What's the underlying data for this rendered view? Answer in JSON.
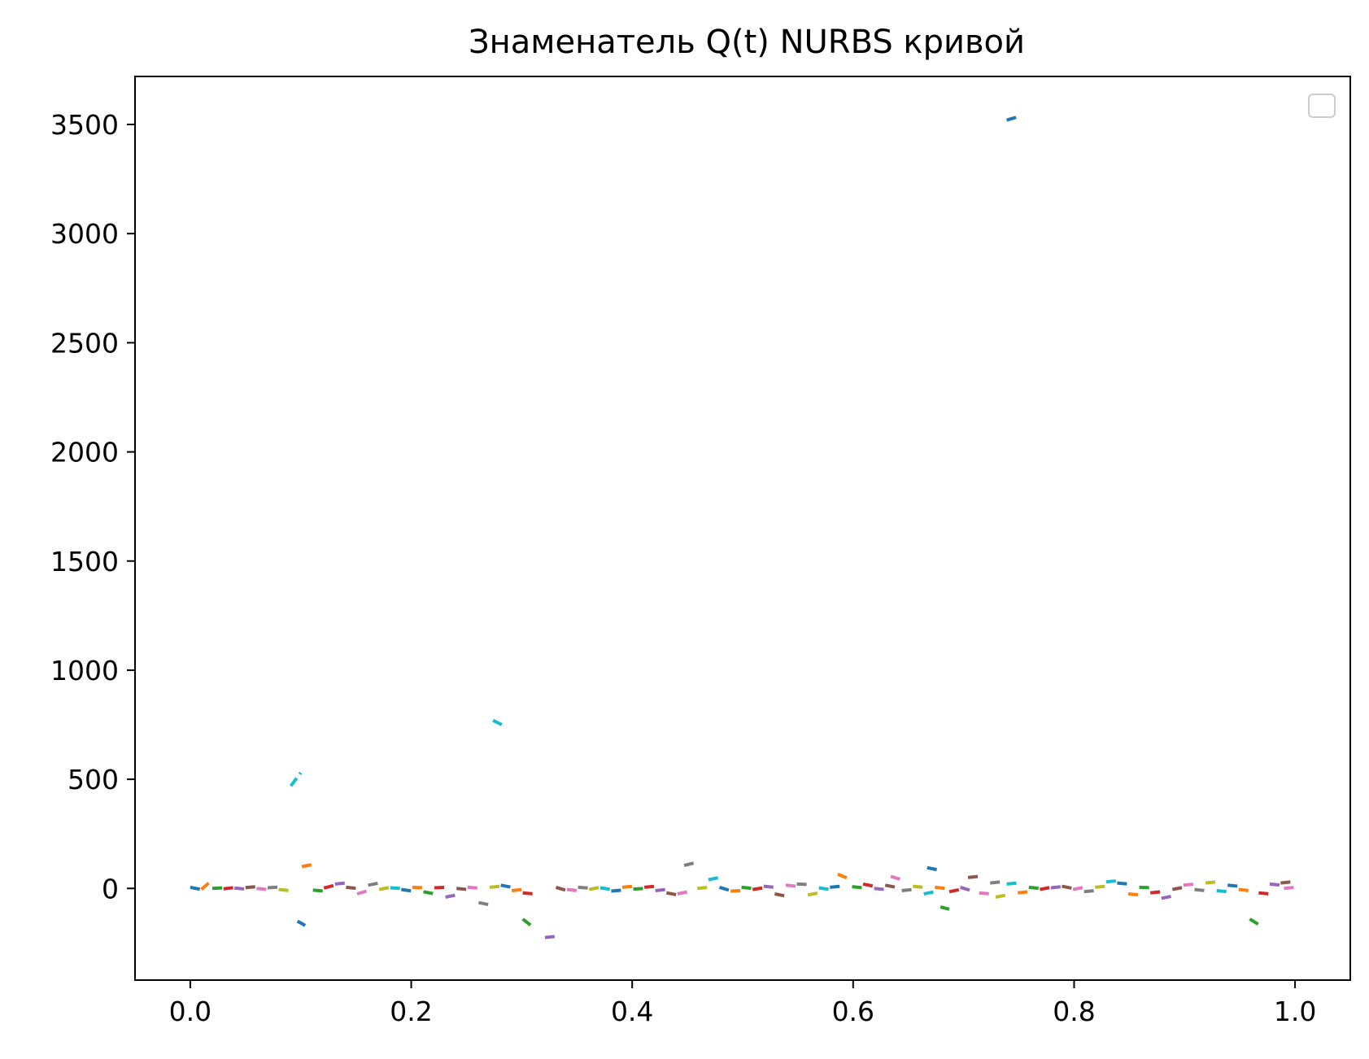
{
  "chart_data": {
    "type": "line",
    "title": "Знаменатель Q(t) NURBS кривой",
    "xlabel": "",
    "ylabel": "",
    "xlim": [
      -0.05,
      1.05
    ],
    "ylim": [
      -420,
      3720
    ],
    "x_ticks": [
      0.0,
      0.2,
      0.4,
      0.6,
      0.8,
      1.0
    ],
    "x_tick_labels": [
      "0.0",
      "0.2",
      "0.4",
      "0.6",
      "0.8",
      "1.0"
    ],
    "y_ticks": [
      0,
      500,
      1000,
      1500,
      2000,
      2500,
      3000,
      3500
    ],
    "y_tick_labels": [
      "0",
      "500",
      "1000",
      "1500",
      "2000",
      "2500",
      "3000",
      "3500"
    ],
    "grid": false,
    "legend": {
      "placement": "top-right",
      "entries": []
    },
    "line_style": "dashed",
    "palette": [
      "#1f77b4",
      "#ff7f0e",
      "#2ca02c",
      "#d62728",
      "#9467bd",
      "#8c564b",
      "#e377c2",
      "#7f7f7f",
      "#bcbd22",
      "#17becf"
    ],
    "segments": [
      {
        "x": [
          0.0,
          0.01
        ],
        "y": [
          5,
          -5
        ]
      },
      {
        "x": [
          0.01,
          0.02
        ],
        "y": [
          -5,
          40
        ]
      },
      {
        "x": [
          0.02,
          0.03
        ],
        "y": [
          0,
          3
        ]
      },
      {
        "x": [
          0.03,
          0.04
        ],
        "y": [
          -2,
          4
        ]
      },
      {
        "x": [
          0.04,
          0.05
        ],
        "y": [
          2,
          -3
        ]
      },
      {
        "x": [
          0.05,
          0.06
        ],
        "y": [
          4,
          8
        ]
      },
      {
        "x": [
          0.06,
          0.07
        ],
        "y": [
          0,
          -5
        ]
      },
      {
        "x": [
          0.07,
          0.08
        ],
        "y": [
          3,
          6
        ]
      },
      {
        "x": [
          0.08,
          0.091
        ],
        "y": [
          -5,
          -10
        ]
      },
      {
        "x": [
          0.091,
          0.1
        ],
        "y": [
          470,
          530
        ]
      },
      {
        "x": [
          0.097,
          0.104
        ],
        "y": [
          -150,
          -170
        ]
      },
      {
        "x": [
          0.101,
          0.111
        ],
        "y": [
          100,
          110
        ]
      },
      {
        "x": [
          0.111,
          0.121
        ],
        "y": [
          -8,
          -12
        ]
      },
      {
        "x": [
          0.121,
          0.131
        ],
        "y": [
          2,
          15
        ]
      },
      {
        "x": [
          0.131,
          0.141
        ],
        "y": [
          20,
          25
        ]
      },
      {
        "x": [
          0.141,
          0.151
        ],
        "y": [
          5,
          0
        ]
      },
      {
        "x": [
          0.151,
          0.161
        ],
        "y": [
          -25,
          -10
        ]
      },
      {
        "x": [
          0.161,
          0.171
        ],
        "y": [
          15,
          25
        ]
      },
      {
        "x": [
          0.171,
          0.181
        ],
        "y": [
          -5,
          5
        ]
      },
      {
        "x": [
          0.181,
          0.191
        ],
        "y": [
          3,
          0
        ]
      },
      {
        "x": [
          0.191,
          0.201
        ],
        "y": [
          -5,
          -12
        ]
      },
      {
        "x": [
          0.201,
          0.211
        ],
        "y": [
          5,
          3
        ]
      },
      {
        "x": [
          0.211,
          0.221
        ],
        "y": [
          -15,
          -25
        ]
      },
      {
        "x": [
          0.221,
          0.231
        ],
        "y": [
          3,
          5
        ]
      },
      {
        "x": [
          0.231,
          0.241
        ],
        "y": [
          -40,
          -30
        ]
      },
      {
        "x": [
          0.241,
          0.251
        ],
        "y": [
          0,
          -5
        ]
      },
      {
        "x": [
          0.251,
          0.261
        ],
        "y": [
          5,
          2
        ]
      },
      {
        "x": [
          0.261,
          0.271
        ],
        "y": [
          -65,
          -75
        ]
      },
      {
        "x": [
          0.271,
          0.281
        ],
        "y": [
          5,
          10
        ]
      },
      {
        "x": [
          0.274,
          0.282
        ],
        "y": [
          770,
          750
        ]
      },
      {
        "x": [
          0.281,
          0.291
        ],
        "y": [
          15,
          5
        ]
      },
      {
        "x": [
          0.291,
          0.301
        ],
        "y": [
          -10,
          -5
        ]
      },
      {
        "x": [
          0.301,
          0.311
        ],
        "y": [
          -140,
          -180
        ]
      },
      {
        "x": [
          0.301,
          0.311
        ],
        "y": [
          -20,
          -25
        ]
      },
      {
        "x": [
          0.321,
          0.33
        ],
        "y": [
          -225,
          -220
        ]
      },
      {
        "x": [
          0.331,
          0.341
        ],
        "y": [
          5,
          -10
        ]
      },
      {
        "x": [
          0.341,
          0.351
        ],
        "y": [
          -5,
          -10
        ]
      },
      {
        "x": [
          0.351,
          0.361
        ],
        "y": [
          5,
          2
        ]
      },
      {
        "x": [
          0.361,
          0.371
        ],
        "y": [
          -5,
          5
        ]
      },
      {
        "x": [
          0.371,
          0.381
        ],
        "y": [
          3,
          -5
        ]
      },
      {
        "x": [
          0.381,
          0.391
        ],
        "y": [
          -12,
          -8
        ]
      },
      {
        "x": [
          0.391,
          0.401
        ],
        "y": [
          5,
          10
        ]
      },
      {
        "x": [
          0.401,
          0.411
        ],
        "y": [
          -3,
          0
        ]
      },
      {
        "x": [
          0.411,
          0.421
        ],
        "y": [
          5,
          10
        ]
      },
      {
        "x": [
          0.421,
          0.431
        ],
        "y": [
          -10,
          -5
        ]
      },
      {
        "x": [
          0.431,
          0.441
        ],
        "y": [
          -20,
          -30
        ]
      },
      {
        "x": [
          0.441,
          0.451
        ],
        "y": [
          -25,
          -15
        ]
      },
      {
        "x": [
          0.447,
          0.459
        ],
        "y": [
          105,
          120
        ]
      },
      {
        "x": [
          0.459,
          0.469
        ],
        "y": [
          0,
          5
        ]
      },
      {
        "x": [
          0.469,
          0.479
        ],
        "y": [
          40,
          50
        ]
      },
      {
        "x": [
          0.479,
          0.489
        ],
        "y": [
          5,
          -10
        ]
      },
      {
        "x": [
          0.489,
          0.499
        ],
        "y": [
          -12,
          -10
        ]
      },
      {
        "x": [
          0.499,
          0.509
        ],
        "y": [
          5,
          0
        ]
      },
      {
        "x": [
          0.509,
          0.519
        ],
        "y": [
          -5,
          3
        ]
      },
      {
        "x": [
          0.519,
          0.529
        ],
        "y": [
          10,
          5
        ]
      },
      {
        "x": [
          0.529,
          0.539
        ],
        "y": [
          -25,
          -35
        ]
      },
      {
        "x": [
          0.539,
          0.549
        ],
        "y": [
          15,
          10
        ]
      },
      {
        "x": [
          0.549,
          0.559
        ],
        "y": [
          20,
          18
        ]
      },
      {
        "x": [
          0.559,
          0.569
        ],
        "y": [
          -30,
          -20
        ]
      },
      {
        "x": [
          0.569,
          0.579
        ],
        "y": [
          3,
          -5
        ]
      },
      {
        "x": [
          0.579,
          0.589
        ],
        "y": [
          5,
          10
        ]
      },
      {
        "x": [
          0.586,
          0.596
        ],
        "y": [
          65,
          45
        ]
      },
      {
        "x": [
          0.599,
          0.609
        ],
        "y": [
          8,
          3
        ]
      },
      {
        "x": [
          0.609,
          0.619
        ],
        "y": [
          20,
          10
        ]
      },
      {
        "x": [
          0.619,
          0.629
        ],
        "y": [
          0,
          -5
        ]
      },
      {
        "x": [
          0.629,
          0.639
        ],
        "y": [
          15,
          5
        ]
      },
      {
        "x": [
          0.634,
          0.644
        ],
        "y": [
          55,
          40
        ]
      },
      {
        "x": [
          0.644,
          0.654
        ],
        "y": [
          -10,
          -5
        ]
      },
      {
        "x": [
          0.654,
          0.664
        ],
        "y": [
          10,
          5
        ]
      },
      {
        "x": [
          0.664,
          0.674
        ],
        "y": [
          -25,
          -15
        ]
      },
      {
        "x": [
          0.667,
          0.677
        ],
        "y": [
          95,
          85
        ]
      },
      {
        "x": [
          0.674,
          0.684
        ],
        "y": [
          5,
          0
        ]
      },
      {
        "x": [
          0.679,
          0.687
        ],
        "y": [
          -85,
          -95
        ]
      },
      {
        "x": [
          0.687,
          0.697
        ],
        "y": [
          -15,
          -5
        ]
      },
      {
        "x": [
          0.697,
          0.707
        ],
        "y": [
          5,
          -10
        ]
      },
      {
        "x": [
          0.704,
          0.714
        ],
        "y": [
          50,
          55
        ]
      },
      {
        "x": [
          0.714,
          0.724
        ],
        "y": [
          -20,
          -25
        ]
      },
      {
        "x": [
          0.724,
          0.734
        ],
        "y": [
          25,
          30
        ]
      },
      {
        "x": [
          0.729,
          0.739
        ],
        "y": [
          -40,
          -30
        ]
      },
      {
        "x": [
          0.739,
          0.749
        ],
        "y": [
          20,
          25
        ]
      },
      {
        "x": [
          0.739,
          0.749
        ],
        "y": [
          3520,
          3535
        ]
      },
      {
        "x": [
          0.749,
          0.759
        ],
        "y": [
          -20,
          -15
        ]
      },
      {
        "x": [
          0.759,
          0.769
        ],
        "y": [
          5,
          0
        ]
      },
      {
        "x": [
          0.769,
          0.779
        ],
        "y": [
          -5,
          5
        ]
      },
      {
        "x": [
          0.779,
          0.789
        ],
        "y": [
          3,
          8
        ]
      },
      {
        "x": [
          0.789,
          0.799
        ],
        "y": [
          10,
          0
        ]
      },
      {
        "x": [
          0.799,
          0.809
        ],
        "y": [
          -5,
          5
        ]
      },
      {
        "x": [
          0.809,
          0.819
        ],
        "y": [
          -15,
          -10
        ]
      },
      {
        "x": [
          0.819,
          0.829
        ],
        "y": [
          5,
          10
        ]
      },
      {
        "x": [
          0.829,
          0.839
        ],
        "y": [
          30,
          35
        ]
      },
      {
        "x": [
          0.839,
          0.849
        ],
        "y": [
          25,
          20
        ]
      },
      {
        "x": [
          0.849,
          0.859
        ],
        "y": [
          -25,
          -30
        ]
      },
      {
        "x": [
          0.859,
          0.869
        ],
        "y": [
          5,
          3
        ]
      },
      {
        "x": [
          0.869,
          0.879
        ],
        "y": [
          -20,
          -15
        ]
      },
      {
        "x": [
          0.879,
          0.889
        ],
        "y": [
          -45,
          -35
        ]
      },
      {
        "x": [
          0.889,
          0.899
        ],
        "y": [
          -5,
          5
        ]
      },
      {
        "x": [
          0.899,
          0.909
        ],
        "y": [
          15,
          20
        ]
      },
      {
        "x": [
          0.909,
          0.919
        ],
        "y": [
          -5,
          -10
        ]
      },
      {
        "x": [
          0.919,
          0.929
        ],
        "y": [
          25,
          30
        ]
      },
      {
        "x": [
          0.929,
          0.939
        ],
        "y": [
          -10,
          -15
        ]
      },
      {
        "x": [
          0.939,
          0.949
        ],
        "y": [
          15,
          10
        ]
      },
      {
        "x": [
          0.949,
          0.959
        ],
        "y": [
          -5,
          -10
        ]
      },
      {
        "x": [
          0.959,
          0.967
        ],
        "y": [
          -140,
          -165
        ]
      },
      {
        "x": [
          0.967,
          0.977
        ],
        "y": [
          -20,
          -25
        ]
      },
      {
        "x": [
          0.977,
          0.987
        ],
        "y": [
          20,
          15
        ]
      },
      {
        "x": [
          0.987,
          0.997
        ],
        "y": [
          25,
          30
        ]
      },
      {
        "x": [
          0.99,
          1.0
        ],
        "y": [
          0,
          5
        ]
      }
    ]
  }
}
